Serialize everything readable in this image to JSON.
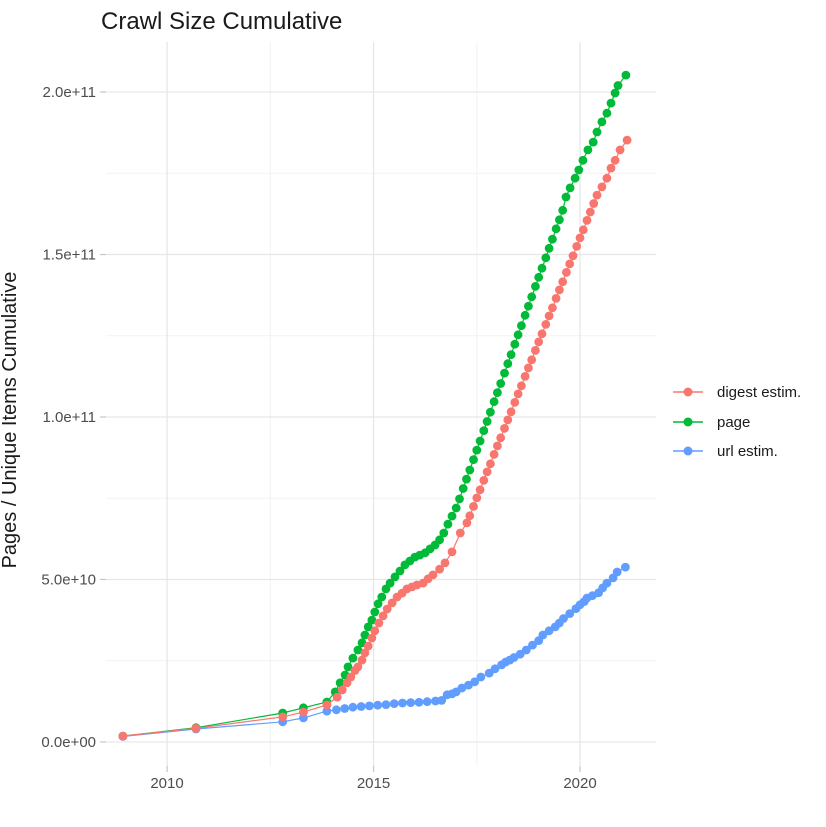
{
  "chart_data": {
    "type": "line",
    "title": "Crawl Size Cumulative",
    "xlabel": "",
    "ylabel": "Pages / Unique Items Cumulative",
    "unit": "values in billions (1e9) of pages / unique items",
    "grid": true,
    "legend_position": "right",
    "x_domain": [
      2008.52,
      2021.84
    ],
    "y_domain_billions": [
      -7.4,
      215.4
    ],
    "x_ticks": [
      {
        "value": 2010,
        "label": "2010"
      },
      {
        "value": 2015,
        "label": "2015"
      },
      {
        "value": 2020,
        "label": "2020"
      }
    ],
    "x_minor_ticks": [
      2012.5,
      2017.5
    ],
    "y_ticks": [
      {
        "value_billions": 0,
        "label": "0.0e+00"
      },
      {
        "value_billions": 50,
        "label": "5.0e+10"
      },
      {
        "value_billions": 100,
        "label": "1.0e+11"
      },
      {
        "value_billions": 150,
        "label": "1.5e+11"
      },
      {
        "value_billions": 200,
        "label": "2.0e+11"
      }
    ],
    "y_minor_ticks_billions": [
      25,
      75,
      125,
      175
    ],
    "series": [
      {
        "name": "digest estim.",
        "color": "#F8766D",
        "points": [
          [
            2008.93,
            1.8
          ],
          [
            2010.7,
            4.2
          ],
          [
            2012.8,
            7.7
          ],
          [
            2013.3,
            9.2
          ],
          [
            2013.87,
            11.4
          ],
          [
            2014.12,
            13.8
          ],
          [
            2014.24,
            16.0
          ],
          [
            2014.36,
            18.2
          ],
          [
            2014.45,
            20.0
          ],
          [
            2014.55,
            22.0
          ],
          [
            2014.62,
            23.1
          ],
          [
            2014.72,
            25.2
          ],
          [
            2014.79,
            27.4
          ],
          [
            2014.87,
            29.5
          ],
          [
            2014.96,
            32.0
          ],
          [
            2015.03,
            34.2
          ],
          [
            2015.13,
            36.6
          ],
          [
            2015.23,
            38.8
          ],
          [
            2015.33,
            40.9
          ],
          [
            2015.45,
            42.8
          ],
          [
            2015.57,
            44.6
          ],
          [
            2015.69,
            45.8
          ],
          [
            2015.81,
            47.1
          ],
          [
            2015.93,
            47.7
          ],
          [
            2016.05,
            48.3
          ],
          [
            2016.2,
            48.9
          ],
          [
            2016.32,
            50.2
          ],
          [
            2016.44,
            51.4
          ],
          [
            2016.6,
            53.2
          ],
          [
            2016.73,
            55.1
          ],
          [
            2016.9,
            58.5
          ],
          [
            2017.1,
            64.3
          ],
          [
            2017.26,
            67.4
          ],
          [
            2017.33,
            69.6
          ],
          [
            2017.42,
            72.5
          ],
          [
            2017.5,
            75.1
          ],
          [
            2017.58,
            77.6
          ],
          [
            2017.67,
            80.5
          ],
          [
            2017.75,
            83.1
          ],
          [
            2017.83,
            85.6
          ],
          [
            2017.92,
            88.5
          ],
          [
            2018.0,
            91.1
          ],
          [
            2018.08,
            93.6
          ],
          [
            2018.17,
            96.5
          ],
          [
            2018.25,
            99.1
          ],
          [
            2018.33,
            101.6
          ],
          [
            2018.42,
            104.5
          ],
          [
            2018.5,
            107.1
          ],
          [
            2018.58,
            109.6
          ],
          [
            2018.67,
            112.5
          ],
          [
            2018.75,
            115.1
          ],
          [
            2018.83,
            117.6
          ],
          [
            2018.92,
            120.5
          ],
          [
            2019.0,
            123.1
          ],
          [
            2019.08,
            125.6
          ],
          [
            2019.17,
            128.5
          ],
          [
            2019.25,
            131.1
          ],
          [
            2019.33,
            133.6
          ],
          [
            2019.42,
            136.5
          ],
          [
            2019.5,
            139.1
          ],
          [
            2019.58,
            141.6
          ],
          [
            2019.67,
            144.5
          ],
          [
            2019.75,
            147.1
          ],
          [
            2019.83,
            149.6
          ],
          [
            2019.92,
            152.5
          ],
          [
            2020.0,
            155.1
          ],
          [
            2020.08,
            157.6
          ],
          [
            2020.17,
            160.5
          ],
          [
            2020.25,
            163.1
          ],
          [
            2020.33,
            165.7
          ],
          [
            2020.41,
            168.3
          ],
          [
            2020.53,
            170.8
          ],
          [
            2020.65,
            173.5
          ],
          [
            2020.75,
            176.6
          ],
          [
            2020.85,
            179.0
          ],
          [
            2020.97,
            182.2
          ],
          [
            2021.14,
            185.2
          ]
        ]
      },
      {
        "name": "page",
        "color": "#00BA38",
        "points": [
          [
            2008.93,
            1.8
          ],
          [
            2010.7,
            4.4
          ],
          [
            2012.8,
            8.9
          ],
          [
            2013.3,
            10.5
          ],
          [
            2013.87,
            12.3
          ],
          [
            2014.07,
            15.4
          ],
          [
            2014.19,
            18.2
          ],
          [
            2014.31,
            20.6
          ],
          [
            2014.38,
            23.1
          ],
          [
            2014.5,
            25.8
          ],
          [
            2014.62,
            28.3
          ],
          [
            2014.72,
            30.5
          ],
          [
            2014.79,
            32.9
          ],
          [
            2014.87,
            35.4
          ],
          [
            2014.96,
            37.5
          ],
          [
            2015.03,
            40.0
          ],
          [
            2015.11,
            42.5
          ],
          [
            2015.2,
            44.6
          ],
          [
            2015.3,
            47.1
          ],
          [
            2015.4,
            48.9
          ],
          [
            2015.52,
            50.8
          ],
          [
            2015.64,
            52.6
          ],
          [
            2015.76,
            54.5
          ],
          [
            2015.88,
            55.7
          ],
          [
            2016.0,
            56.9
          ],
          [
            2016.12,
            57.5
          ],
          [
            2016.25,
            58.2
          ],
          [
            2016.37,
            59.4
          ],
          [
            2016.49,
            60.6
          ],
          [
            2016.6,
            62.2
          ],
          [
            2016.7,
            64.3
          ],
          [
            2016.8,
            67.0
          ],
          [
            2016.9,
            69.5
          ],
          [
            2017.0,
            72.0
          ],
          [
            2017.08,
            74.8
          ],
          [
            2017.17,
            78.0
          ],
          [
            2017.25,
            80.9
          ],
          [
            2017.33,
            83.7
          ],
          [
            2017.42,
            86.9
          ],
          [
            2017.5,
            89.8
          ],
          [
            2017.58,
            92.6
          ],
          [
            2017.67,
            95.8
          ],
          [
            2017.75,
            98.6
          ],
          [
            2017.83,
            101.5
          ],
          [
            2017.92,
            104.7
          ],
          [
            2018.0,
            107.5
          ],
          [
            2018.08,
            110.3
          ],
          [
            2018.17,
            113.5
          ],
          [
            2018.25,
            116.4
          ],
          [
            2018.33,
            119.2
          ],
          [
            2018.42,
            122.4
          ],
          [
            2018.5,
            125.3
          ],
          [
            2018.58,
            128.1
          ],
          [
            2018.67,
            131.3
          ],
          [
            2018.75,
            134.1
          ],
          [
            2018.83,
            137.0
          ],
          [
            2018.92,
            140.2
          ],
          [
            2019.0,
            143.0
          ],
          [
            2019.08,
            145.8
          ],
          [
            2019.17,
            149.0
          ],
          [
            2019.25,
            151.9
          ],
          [
            2019.33,
            154.7
          ],
          [
            2019.42,
            157.9
          ],
          [
            2019.5,
            160.7
          ],
          [
            2019.58,
            163.6
          ],
          [
            2019.66,
            167.7
          ],
          [
            2019.76,
            170.5
          ],
          [
            2019.88,
            173.5
          ],
          [
            2019.97,
            176.0
          ],
          [
            2020.07,
            179.0
          ],
          [
            2020.19,
            182.2
          ],
          [
            2020.32,
            184.6
          ],
          [
            2020.41,
            187.7
          ],
          [
            2020.53,
            190.8
          ],
          [
            2020.65,
            193.5
          ],
          [
            2020.75,
            196.6
          ],
          [
            2020.85,
            199.7
          ],
          [
            2020.92,
            202.0
          ],
          [
            2021.11,
            205.2
          ]
        ]
      },
      {
        "name": "url estim.",
        "color": "#619CFF",
        "points": [
          [
            2008.93,
            1.7
          ],
          [
            2010.7,
            4.0
          ],
          [
            2012.8,
            6.2
          ],
          [
            2013.3,
            7.4
          ],
          [
            2013.87,
            9.5
          ],
          [
            2014.1,
            9.9
          ],
          [
            2014.3,
            10.3
          ],
          [
            2014.5,
            10.7
          ],
          [
            2014.7,
            10.9
          ],
          [
            2014.9,
            11.1
          ],
          [
            2015.1,
            11.3
          ],
          [
            2015.3,
            11.5
          ],
          [
            2015.5,
            11.8
          ],
          [
            2015.7,
            12.0
          ],
          [
            2015.9,
            12.1
          ],
          [
            2016.1,
            12.2
          ],
          [
            2016.3,
            12.4
          ],
          [
            2016.5,
            12.6
          ],
          [
            2016.65,
            12.8
          ],
          [
            2016.78,
            14.5
          ],
          [
            2016.9,
            14.8
          ],
          [
            2017.0,
            15.4
          ],
          [
            2017.14,
            16.6
          ],
          [
            2017.3,
            17.5
          ],
          [
            2017.45,
            18.5
          ],
          [
            2017.6,
            20.0
          ],
          [
            2017.8,
            21.2
          ],
          [
            2017.94,
            22.5
          ],
          [
            2018.1,
            23.7
          ],
          [
            2018.2,
            24.6
          ],
          [
            2018.3,
            25.2
          ],
          [
            2018.4,
            26.0
          ],
          [
            2018.55,
            27.0
          ],
          [
            2018.7,
            28.3
          ],
          [
            2018.85,
            29.8
          ],
          [
            2019.0,
            31.2
          ],
          [
            2019.1,
            32.9
          ],
          [
            2019.25,
            34.2
          ],
          [
            2019.4,
            35.4
          ],
          [
            2019.5,
            36.6
          ],
          [
            2019.6,
            38.0
          ],
          [
            2019.75,
            39.5
          ],
          [
            2019.9,
            41.0
          ],
          [
            2020.0,
            42.2
          ],
          [
            2020.1,
            43.2
          ],
          [
            2020.17,
            44.3
          ],
          [
            2020.3,
            45.0
          ],
          [
            2020.45,
            45.9
          ],
          [
            2020.55,
            47.4
          ],
          [
            2020.65,
            48.9
          ],
          [
            2020.8,
            50.5
          ],
          [
            2020.9,
            52.3
          ],
          [
            2021.1,
            53.8
          ]
        ]
      }
    ],
    "draw_order": [
      1,
      2,
      0
    ],
    "style": {
      "grid_major_color": "#e6e6e6",
      "grid_minor_color": "#f2f2f2",
      "tick_mark_color": "#c6c6c6",
      "point_radius": 4.4,
      "line_width": 1.2
    }
  }
}
